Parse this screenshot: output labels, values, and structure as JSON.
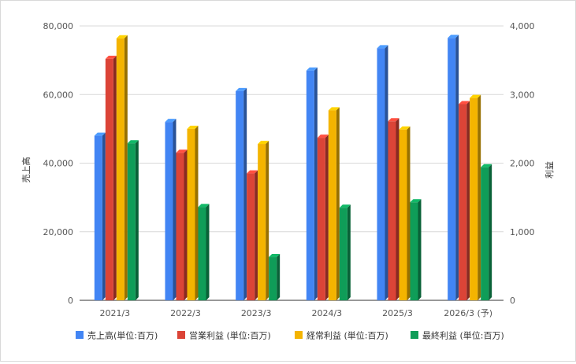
{
  "chart_data": {
    "type": "bar",
    "categories": [
      "2021/3",
      "2022/3",
      "2023/3",
      "2024/3",
      "2025/3",
      "2026/3 (予)"
    ],
    "y_left": {
      "label": "売上高",
      "ylim": [
        0,
        80000
      ],
      "ticks": [
        "0",
        "20,000",
        "40,000",
        "60,000",
        "80,000"
      ]
    },
    "y_right": {
      "label": "利益",
      "ylim": [
        0,
        4000
      ],
      "ticks": [
        "0",
        "1,000",
        "2,000",
        "3,000",
        "4,000"
      ]
    },
    "series": [
      {
        "name": "売上高(単位:百万)",
        "axis": "left",
        "color": "#4285f4",
        "values": [
          48000,
          52000,
          61000,
          67000,
          73500,
          76500
        ]
      },
      {
        "name": "営業利益 (単位:百万)",
        "axis": "right",
        "color": "#db4437",
        "values": [
          3520,
          2150,
          1850,
          2370,
          2610,
          2860
        ]
      },
      {
        "name": "経常利益 (単位:百万)",
        "axis": "right",
        "color": "#f4b400",
        "values": [
          3820,
          2500,
          2280,
          2770,
          2490,
          2950
        ]
      },
      {
        "name": "最終利益 (単位:百万)",
        "axis": "right",
        "color": "#0f9d58",
        "values": [
          2290,
          1360,
          630,
          1350,
          1430,
          1940
        ]
      }
    ],
    "grid": true,
    "style": "3d-bar",
    "legend_position": "bottom"
  }
}
